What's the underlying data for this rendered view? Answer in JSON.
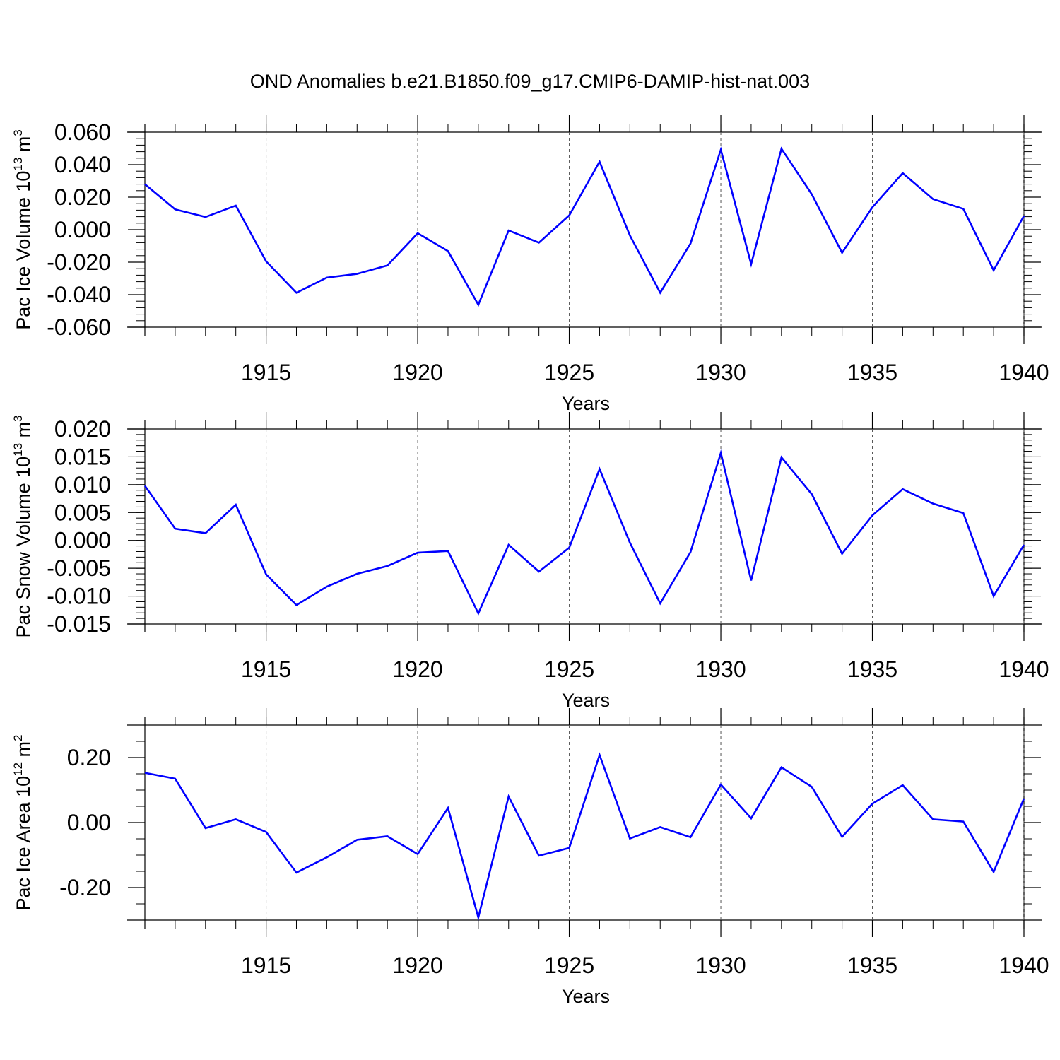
{
  "title": "OND Anomalies b.e21.B1850.f09_g17.CMIP6-DAMIP-hist-nat.003",
  "colors": {
    "line": "#0000FF",
    "axis": "#000000",
    "grid": "#555555"
  },
  "chart_data": [
    {
      "type": "line",
      "ylabel_main": "Pac Ice Volume 10",
      "ylabel_exp": "13",
      "ylabel_unit": " m",
      "ylabel_unit_exp": "3",
      "xlabel": "Years",
      "xlim": [
        1911,
        1940
      ],
      "ylim": [
        -0.06,
        0.06
      ],
      "xticks": [
        1915,
        1920,
        1925,
        1930,
        1935,
        1940
      ],
      "xtick_labels": [
        "1915",
        "1920",
        "1925",
        "1930",
        "1935",
        "1940"
      ],
      "yticks": [
        -0.06,
        -0.04,
        -0.02,
        0.0,
        0.02,
        0.04,
        0.06
      ],
      "ytick_labels": [
        "-0.060",
        "-0.040",
        "-0.020",
        "0.000",
        "0.020",
        "0.040",
        "0.060"
      ],
      "yminor_step": 0.004,
      "x": [
        1911,
        1912,
        1913,
        1914,
        1915,
        1916,
        1917,
        1918,
        1919,
        1920,
        1921,
        1922,
        1923,
        1924,
        1925,
        1926,
        1927,
        1928,
        1929,
        1930,
        1931,
        1932,
        1933,
        1934,
        1935,
        1936,
        1937,
        1938,
        1939,
        1940
      ],
      "values": [
        0.028,
        0.0125,
        0.0078,
        0.0148,
        -0.0195,
        -0.0388,
        -0.0295,
        -0.0272,
        -0.022,
        -0.0022,
        -0.0132,
        -0.0462,
        -0.0005,
        -0.008,
        0.0088,
        0.0418,
        -0.0035,
        -0.0388,
        -0.0085,
        0.0492,
        -0.0212,
        0.0498,
        0.0218,
        -0.0142,
        0.0138,
        0.0348,
        0.0188,
        0.0128,
        -0.025,
        0.0085
      ]
    },
    {
      "type": "line",
      "ylabel_main": "Pac Snow Volume 10",
      "ylabel_exp": "13",
      "ylabel_unit": " m",
      "ylabel_unit_exp": "3",
      "xlabel": "Years",
      "xlim": [
        1911,
        1940
      ],
      "ylim": [
        -0.015,
        0.02
      ],
      "xticks": [
        1915,
        1920,
        1925,
        1930,
        1935,
        1940
      ],
      "xtick_labels": [
        "1915",
        "1920",
        "1925",
        "1930",
        "1935",
        "1940"
      ],
      "yticks": [
        -0.015,
        -0.01,
        -0.005,
        0.0,
        0.005,
        0.01,
        0.015,
        0.02
      ],
      "ytick_labels": [
        "-0.015",
        "-0.010",
        "-0.005",
        "0.000",
        "0.005",
        "0.010",
        "0.015",
        "0.020"
      ],
      "yminor_step": 0.001,
      "x": [
        1911,
        1912,
        1913,
        1914,
        1915,
        1916,
        1917,
        1918,
        1919,
        1920,
        1921,
        1922,
        1923,
        1924,
        1925,
        1926,
        1927,
        1928,
        1929,
        1930,
        1931,
        1932,
        1933,
        1934,
        1935,
        1936,
        1937,
        1938,
        1939,
        1940
      ],
      "values": [
        0.0098,
        0.0021,
        0.0013,
        0.0064,
        -0.0061,
        -0.0116,
        -0.0083,
        -0.006,
        -0.0046,
        -0.0022,
        -0.0019,
        -0.0131,
        -0.0008,
        -0.0056,
        -0.0013,
        0.0128,
        -0.0004,
        -0.0113,
        -0.0021,
        0.0157,
        -0.0072,
        0.0149,
        0.0083,
        -0.0024,
        0.0045,
        0.0092,
        0.0066,
        0.0049,
        -0.01,
        -0.0008
      ]
    },
    {
      "type": "line",
      "ylabel_main": "Pac Ice Area 10",
      "ylabel_exp": "12",
      "ylabel_unit": " m",
      "ylabel_unit_exp": "2",
      "xlabel": "Years",
      "xlim": [
        1911,
        1940
      ],
      "ylim": [
        -0.3,
        0.3
      ],
      "xticks": [
        1915,
        1920,
        1925,
        1930,
        1935,
        1940
      ],
      "xtick_labels": [
        "1915",
        "1920",
        "1925",
        "1930",
        "1935",
        "1940"
      ],
      "yticks": [
        -0.2,
        0.0,
        0.2
      ],
      "ytick_labels": [
        "-0.20",
        "0.00",
        "0.20"
      ],
      "yminor_step": 0.05,
      "x": [
        1911,
        1912,
        1913,
        1914,
        1915,
        1916,
        1917,
        1918,
        1919,
        1920,
        1921,
        1922,
        1923,
        1924,
        1925,
        1926,
        1927,
        1928,
        1929,
        1930,
        1931,
        1932,
        1933,
        1934,
        1935,
        1936,
        1937,
        1938,
        1939,
        1940
      ],
      "values": [
        0.153,
        0.135,
        -0.017,
        0.01,
        -0.029,
        -0.154,
        -0.107,
        -0.053,
        -0.042,
        -0.097,
        0.045,
        -0.292,
        0.08,
        -0.102,
        -0.078,
        0.208,
        -0.049,
        -0.014,
        -0.045,
        0.117,
        0.013,
        0.17,
        0.11,
        -0.044,
        0.058,
        0.115,
        0.01,
        0.003,
        -0.152,
        0.074
      ]
    }
  ]
}
